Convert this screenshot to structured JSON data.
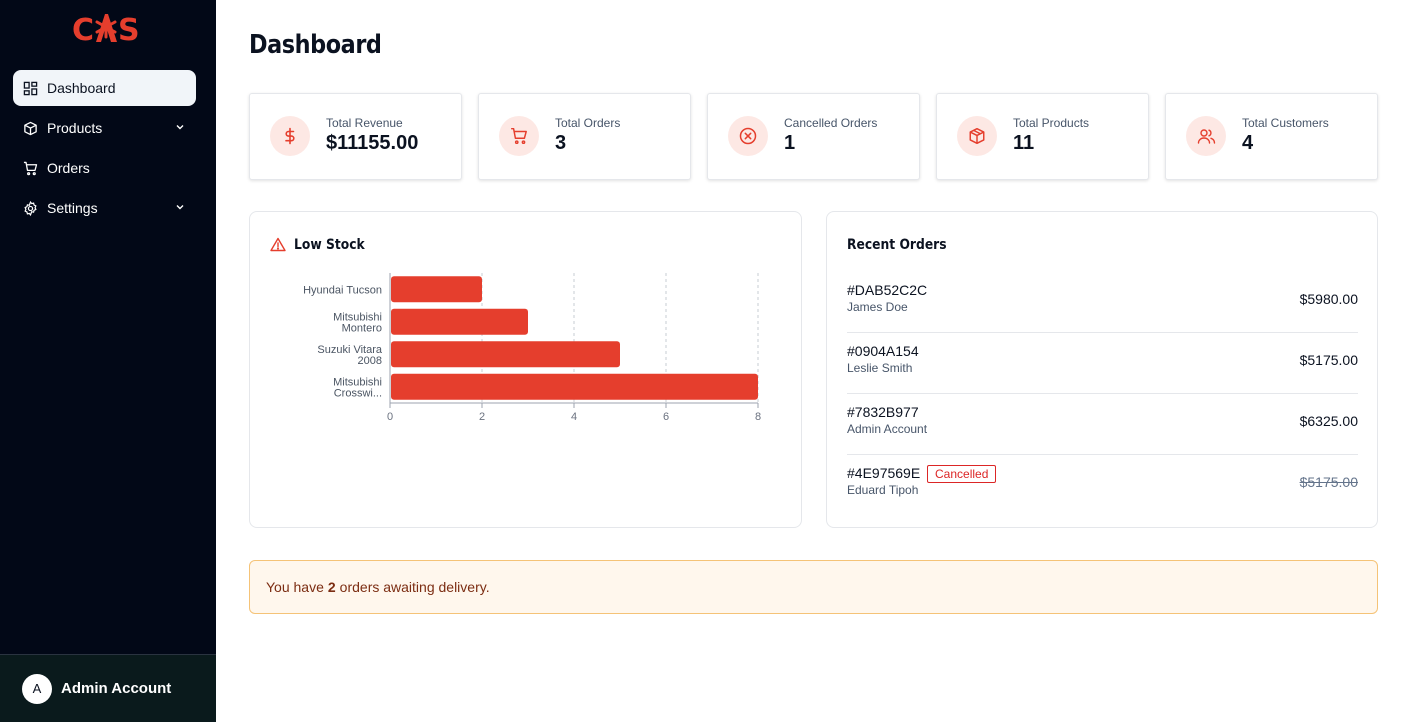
{
  "brand": {
    "logo_text": "CAS",
    "accent": "#e53e2d"
  },
  "sidebar": {
    "items": [
      {
        "label": "Dashboard",
        "icon": "dashboard-icon",
        "active": true,
        "has_chevron": false
      },
      {
        "label": "Products",
        "icon": "box-icon",
        "active": false,
        "has_chevron": true
      },
      {
        "label": "Orders",
        "icon": "cart-icon",
        "active": false,
        "has_chevron": false
      },
      {
        "label": "Settings",
        "icon": "gear-icon",
        "active": false,
        "has_chevron": true
      }
    ],
    "account": {
      "initial": "A",
      "name": "Admin Account"
    }
  },
  "page": {
    "title": "Dashboard"
  },
  "stats": [
    {
      "label": "Total Revenue",
      "value": "$11155.00",
      "icon": "dollar-icon"
    },
    {
      "label": "Total Orders",
      "value": "3",
      "icon": "cart-icon"
    },
    {
      "label": "Cancelled Orders",
      "value": "1",
      "icon": "x-circle-icon"
    },
    {
      "label": "Total Products",
      "value": "11",
      "icon": "box-icon"
    },
    {
      "label": "Total Customers",
      "value": "4",
      "icon": "users-icon"
    }
  ],
  "low_stock": {
    "title": "Low Stock",
    "icon": "warning-icon"
  },
  "chart_data": {
    "type": "bar",
    "orientation": "horizontal",
    "title": "",
    "categories": [
      [
        "Hyundai Tucson"
      ],
      [
        "Mitsubishi",
        "Montero"
      ],
      [
        "Suzuki Vitara",
        "2008"
      ],
      [
        "Mitsubishi",
        "Crosswi..."
      ]
    ],
    "values": [
      2,
      3,
      5,
      8
    ],
    "xlim": [
      0,
      8
    ],
    "xticks": [
      "0",
      "2",
      "4",
      "6",
      "8"
    ],
    "grid": "vertical-dashed",
    "bar_color": "#e53e2d"
  },
  "recent_orders": {
    "title": "Recent Orders",
    "orders": [
      {
        "id": "#DAB52C2C",
        "customer": "James Doe",
        "total": "$5980.00",
        "status": ""
      },
      {
        "id": "#0904A154",
        "customer": "Leslie Smith",
        "total": "$5175.00",
        "status": ""
      },
      {
        "id": "#7832B977",
        "customer": "Admin Account",
        "total": "$6325.00",
        "status": ""
      },
      {
        "id": "#4E97569E",
        "customer": "Eduard Tipoh",
        "total": "$5175.00",
        "status": "Cancelled"
      }
    ]
  },
  "alert": {
    "prefix": "You have",
    "count": "2",
    "suffix": "orders awaiting delivery."
  }
}
